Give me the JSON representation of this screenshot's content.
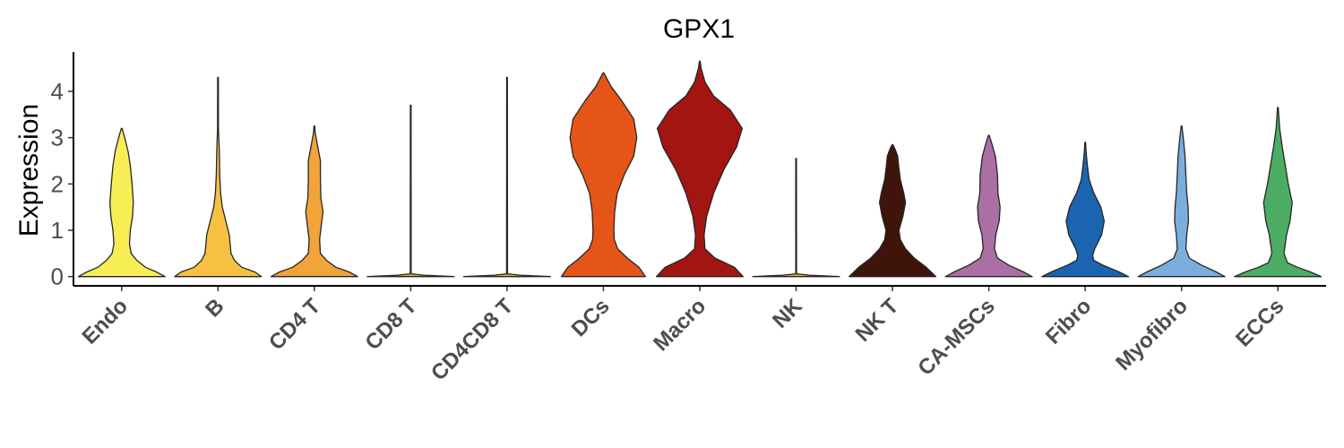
{
  "chart_data": {
    "type": "violin",
    "title": "GPX1",
    "ylabel": "Expression",
    "xlabel": "",
    "ylim": [
      -0.2,
      4.85
    ],
    "yticks": [
      0,
      1,
      2,
      3,
      4
    ],
    "legend": "none",
    "grid": false,
    "categories": [
      "Endo",
      "B",
      "CD4 T",
      "CD8 T",
      "CD4CD8 T",
      "DCs",
      "Macro",
      "NK",
      "NK T",
      "CA-MSCs",
      "Fibro",
      "Myofibro",
      "ECCs"
    ],
    "series": [
      {
        "category": "Endo",
        "color": "#F7EE55",
        "max": 3.2,
        "profile": [
          [
            0,
            1.0
          ],
          [
            0.1,
            0.8
          ],
          [
            0.2,
            0.55
          ],
          [
            0.35,
            0.35
          ],
          [
            0.5,
            0.22
          ],
          [
            0.7,
            0.18
          ],
          [
            1.0,
            0.2
          ],
          [
            1.3,
            0.25
          ],
          [
            1.6,
            0.27
          ],
          [
            2.0,
            0.24
          ],
          [
            2.4,
            0.2
          ],
          [
            2.7,
            0.15
          ],
          [
            3.0,
            0.07
          ],
          [
            3.2,
            0.0
          ]
        ]
      },
      {
        "category": "B",
        "color": "#F6C141",
        "max": 4.3,
        "profile": [
          [
            0,
            1.0
          ],
          [
            0.1,
            0.85
          ],
          [
            0.2,
            0.55
          ],
          [
            0.35,
            0.38
          ],
          [
            0.5,
            0.3
          ],
          [
            0.7,
            0.28
          ],
          [
            0.9,
            0.26
          ],
          [
            1.2,
            0.18
          ],
          [
            1.5,
            0.1
          ],
          [
            1.8,
            0.06
          ],
          [
            2.2,
            0.04
          ],
          [
            2.7,
            0.03
          ],
          [
            3.2,
            0.01
          ],
          [
            4.3,
            0.0
          ]
        ]
      },
      {
        "category": "CD4 T",
        "color": "#F1A43A",
        "max": 3.25,
        "profile": [
          [
            0,
            1.0
          ],
          [
            0.1,
            0.8
          ],
          [
            0.2,
            0.5
          ],
          [
            0.35,
            0.28
          ],
          [
            0.5,
            0.14
          ],
          [
            0.8,
            0.12
          ],
          [
            1.1,
            0.16
          ],
          [
            1.4,
            0.2
          ],
          [
            1.7,
            0.15
          ],
          [
            2.1,
            0.14
          ],
          [
            2.5,
            0.14
          ],
          [
            2.8,
            0.08
          ],
          [
            3.1,
            0.02
          ],
          [
            3.25,
            0.0
          ]
        ]
      },
      {
        "category": "CD8 T",
        "color": "#F1A43A",
        "max": 3.7,
        "profile": [
          [
            0,
            1.0
          ],
          [
            0.03,
            0.3
          ],
          [
            0.06,
            0.01
          ],
          [
            3.7,
            0.0
          ]
        ]
      },
      {
        "category": "CD4CD8 T",
        "color": "#F1A43A",
        "max": 4.3,
        "profile": [
          [
            0,
            1.0
          ],
          [
            0.03,
            0.3
          ],
          [
            0.06,
            0.01
          ],
          [
            4.3,
            0.0
          ]
        ]
      },
      {
        "category": "DCs",
        "color": "#E65518",
        "max": 4.4,
        "profile": [
          [
            0,
            0.97
          ],
          [
            0.2,
            0.82
          ],
          [
            0.4,
            0.55
          ],
          [
            0.6,
            0.33
          ],
          [
            0.8,
            0.25
          ],
          [
            1.0,
            0.24
          ],
          [
            1.4,
            0.26
          ],
          [
            1.8,
            0.32
          ],
          [
            2.2,
            0.48
          ],
          [
            2.6,
            0.7
          ],
          [
            3.0,
            0.77
          ],
          [
            3.4,
            0.7
          ],
          [
            3.8,
            0.42
          ],
          [
            4.1,
            0.18
          ],
          [
            4.4,
            0.0
          ]
        ]
      },
      {
        "category": "Macro",
        "color": "#A21510",
        "max": 4.65,
        "profile": [
          [
            0,
            1.0
          ],
          [
            0.2,
            0.8
          ],
          [
            0.4,
            0.35
          ],
          [
            0.6,
            0.12
          ],
          [
            0.9,
            0.1
          ],
          [
            1.3,
            0.16
          ],
          [
            1.8,
            0.32
          ],
          [
            2.3,
            0.55
          ],
          [
            2.8,
            0.85
          ],
          [
            3.2,
            0.98
          ],
          [
            3.6,
            0.7
          ],
          [
            3.9,
            0.32
          ],
          [
            4.2,
            0.12
          ],
          [
            4.5,
            0.03
          ],
          [
            4.65,
            0.0
          ]
        ]
      },
      {
        "category": "NK",
        "color": "#F1A43A",
        "max": 2.55,
        "profile": [
          [
            0,
            1.0
          ],
          [
            0.03,
            0.3
          ],
          [
            0.06,
            0.01
          ],
          [
            2.55,
            0.0
          ]
        ]
      },
      {
        "category": "NK T",
        "color": "#3F140A",
        "max": 2.85,
        "profile": [
          [
            0,
            1.0
          ],
          [
            0.2,
            0.78
          ],
          [
            0.4,
            0.5
          ],
          [
            0.6,
            0.3
          ],
          [
            0.8,
            0.18
          ],
          [
            1.0,
            0.15
          ],
          [
            1.3,
            0.24
          ],
          [
            1.6,
            0.3
          ],
          [
            1.8,
            0.26
          ],
          [
            2.1,
            0.18
          ],
          [
            2.4,
            0.14
          ],
          [
            2.6,
            0.12
          ],
          [
            2.75,
            0.06
          ],
          [
            2.85,
            0.0
          ]
        ]
      },
      {
        "category": "CA-MSCs",
        "color": "#AB6FA3",
        "max": 3.05,
        "profile": [
          [
            0,
            1.0
          ],
          [
            0.1,
            0.8
          ],
          [
            0.25,
            0.45
          ],
          [
            0.4,
            0.2
          ],
          [
            0.6,
            0.13
          ],
          [
            0.9,
            0.16
          ],
          [
            1.2,
            0.24
          ],
          [
            1.5,
            0.26
          ],
          [
            1.8,
            0.21
          ],
          [
            2.2,
            0.2
          ],
          [
            2.6,
            0.15
          ],
          [
            2.9,
            0.06
          ],
          [
            3.05,
            0.0
          ]
        ]
      },
      {
        "category": "Fibro",
        "color": "#1A64B0",
        "max": 2.9,
        "profile": [
          [
            0,
            1.0
          ],
          [
            0.1,
            0.78
          ],
          [
            0.25,
            0.4
          ],
          [
            0.35,
            0.2
          ],
          [
            0.45,
            0.17
          ],
          [
            0.6,
            0.22
          ],
          [
            0.9,
            0.38
          ],
          [
            1.2,
            0.44
          ],
          [
            1.5,
            0.36
          ],
          [
            1.8,
            0.2
          ],
          [
            2.1,
            0.09
          ],
          [
            2.4,
            0.05
          ],
          [
            2.7,
            0.02
          ],
          [
            2.9,
            0.0
          ]
        ]
      },
      {
        "category": "Myofibro",
        "color": "#7BAEDC",
        "max": 3.25,
        "profile": [
          [
            0,
            1.0
          ],
          [
            0.1,
            0.8
          ],
          [
            0.25,
            0.45
          ],
          [
            0.4,
            0.18
          ],
          [
            0.6,
            0.1
          ],
          [
            0.9,
            0.12
          ],
          [
            1.2,
            0.16
          ],
          [
            1.5,
            0.15
          ],
          [
            1.8,
            0.12
          ],
          [
            2.2,
            0.1
          ],
          [
            2.6,
            0.08
          ],
          [
            3.0,
            0.04
          ],
          [
            3.25,
            0.0
          ]
        ]
      },
      {
        "category": "ECCs",
        "color": "#4CAD62",
        "max": 3.65,
        "profile": [
          [
            0,
            1.0
          ],
          [
            0.1,
            0.75
          ],
          [
            0.2,
            0.45
          ],
          [
            0.3,
            0.22
          ],
          [
            0.5,
            0.14
          ],
          [
            0.9,
            0.2
          ],
          [
            1.2,
            0.28
          ],
          [
            1.6,
            0.33
          ],
          [
            2.0,
            0.24
          ],
          [
            2.4,
            0.17
          ],
          [
            2.8,
            0.1
          ],
          [
            3.2,
            0.04
          ],
          [
            3.65,
            0.0
          ]
        ]
      }
    ]
  }
}
